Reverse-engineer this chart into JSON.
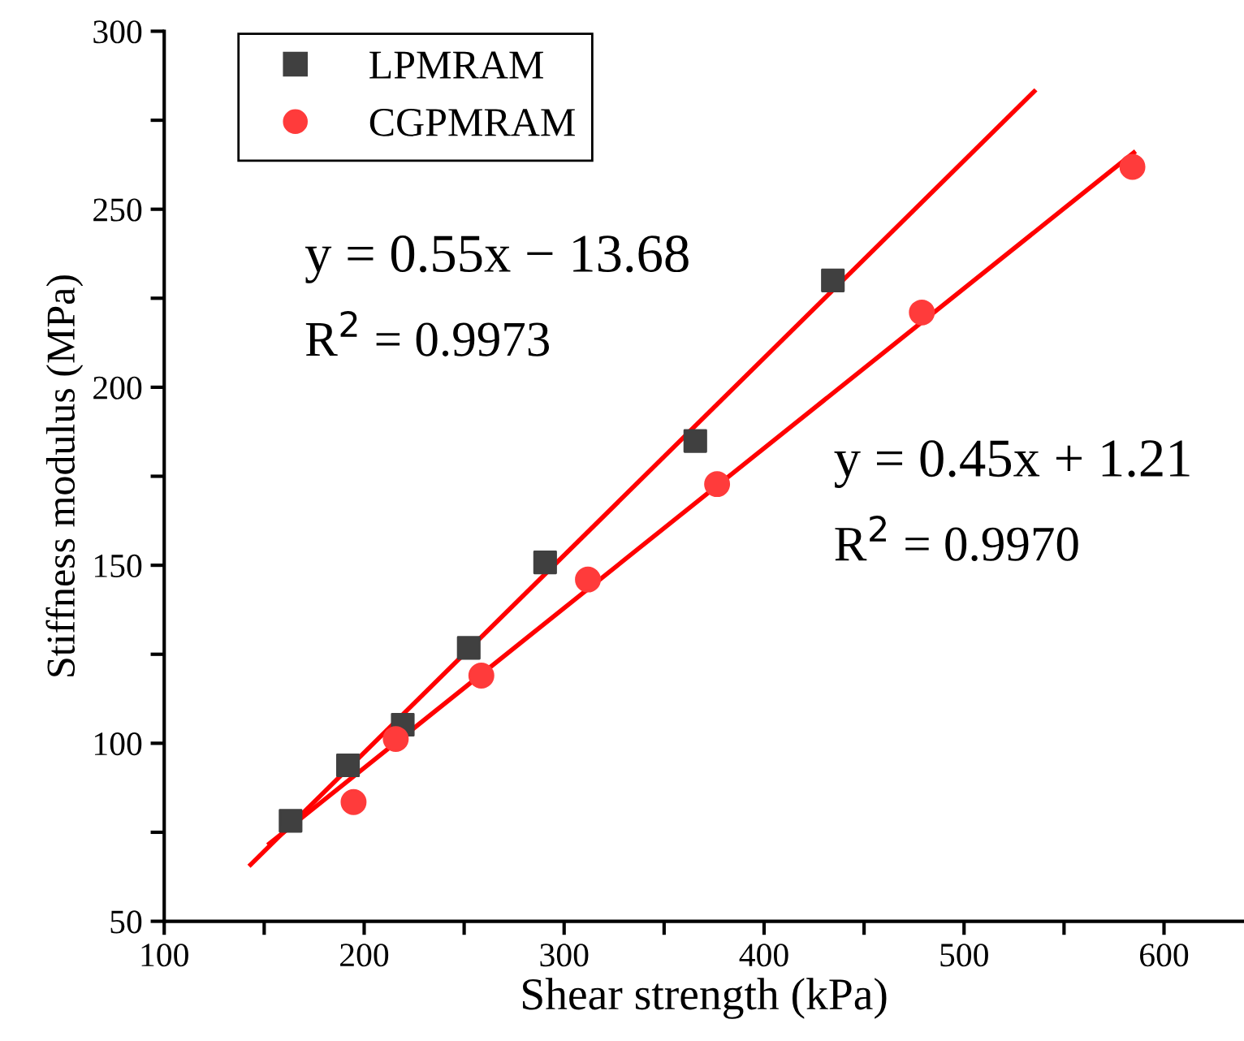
{
  "chart_data": {
    "type": "scatter",
    "xlabel": "Shear strength (kPa)",
    "ylabel": "Stiffness modulus (MPa)",
    "xlim": [
      100,
      640
    ],
    "xticks": [
      100,
      {
        "value": 150,
        "label": null
      },
      200,
      {
        "value": 250,
        "label": null
      },
      300,
      {
        "value": 350,
        "label": null
      },
      400,
      {
        "value": 450,
        "label": null
      },
      500,
      {
        "value": 550,
        "label": null
      },
      600
    ],
    "ylim": [
      50,
      300
    ],
    "yticks": [
      50,
      {
        "value": 75,
        "label": null
      },
      100,
      {
        "value": 125,
        "label": null
      },
      150,
      {
        "value": 175,
        "label": null
      },
      200,
      {
        "value": 225,
        "label": null
      },
      250,
      {
        "value": 275,
        "label": null
      },
      300
    ],
    "grid": false,
    "legend": "top left",
    "series": [
      {
        "name": "LPMRAM",
        "marker": "square",
        "color": "#404040",
        "x": [
          163.2,
          191.9,
          219.3,
          252.3,
          290.5,
          365.6,
          434.4
        ],
        "values": [
          78.2,
          93.8,
          105.2,
          126.8,
          150.8,
          184.9,
          230.0
        ]
      },
      {
        "name": "CGPMRAM",
        "marker": "circle",
        "color": "#ff3b3b",
        "x": [
          194.7,
          215.8,
          258.6,
          311.9,
          376.5,
          478.9,
          584.2
        ],
        "values": [
          83.5,
          101.2,
          119.0,
          146.0,
          172.8,
          221.0,
          261.9
        ]
      },
      {
        "type": "line",
        "marker": "none",
        "line_style": "solid",
        "color": "#ff0000",
        "x": [
          143.2,
          535.1
        ],
        "values": [
          65.9,
          283.1
        ]
      },
      {
        "type": "line",
        "marker": "none",
        "line_style": "solid",
        "color": "#ff0000",
        "x": [
          152.6,
          584.9
        ],
        "values": [
          71.8,
          265.9
        ]
      }
    ],
    "annotations": [
      "y = 0.55x − 13.68",
      "R$^{2}$ = 0.9973",
      "y = 0.45x + 1.21",
      "R$^{2}$ = 0.9970"
    ]
  }
}
